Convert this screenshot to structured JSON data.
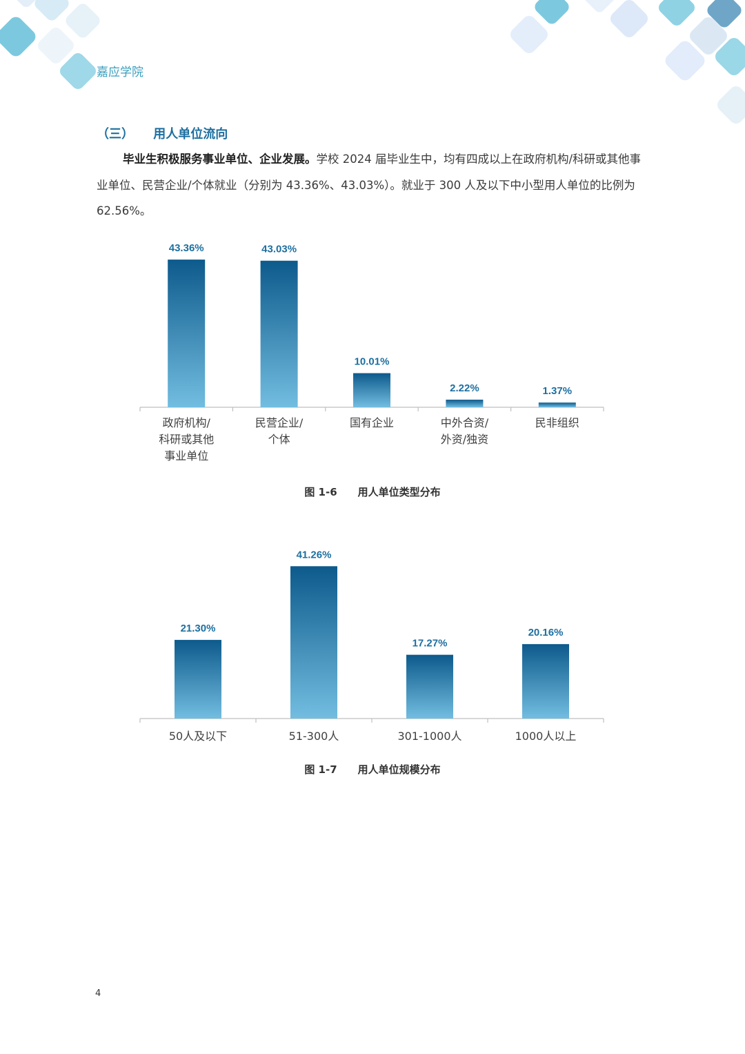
{
  "header": {
    "school": "嘉应学院"
  },
  "section": {
    "number": "（三）",
    "title": "用人单位流向"
  },
  "paragraph": {
    "bold_lead": "毕业生积极服务事业单位、企业发展。",
    "text": "学校 2024 届毕业生中，均有四成以上在政府机构/科研或其他事业单位、民营企业/个体就业（分别为 43.36%、43.03%）。就业于 300 人及以下中小型用人单位的比例为 62.56%。"
  },
  "chart_data": [
    {
      "type": "bar",
      "categories": [
        [
          "政府机构/",
          "科研或其他",
          "事业单位"
        ],
        [
          "民营企业/",
          "个体"
        ],
        [
          "国有企业"
        ],
        [
          "中外合资/",
          "外资/独资"
        ],
        [
          "民非组织"
        ]
      ],
      "values": [
        43.36,
        43.03,
        10.01,
        2.22,
        1.37
      ],
      "value_labels": [
        "43.36%",
        "43.03%",
        "10.01%",
        "2.22%",
        "1.37%"
      ],
      "ylim": [
        0,
        45
      ],
      "grid": false,
      "colors": {
        "top": "#0d5a8c",
        "bottom": "#72bde0",
        "label": "#1d6fa0"
      }
    },
    {
      "type": "bar",
      "categories": [
        [
          "50人及以下"
        ],
        [
          "51-300人"
        ],
        [
          "301-1000人"
        ],
        [
          "1000人以上"
        ]
      ],
      "values": [
        21.3,
        41.26,
        17.27,
        20.16
      ],
      "value_labels": [
        "21.30%",
        "41.26%",
        "17.27%",
        "20.16%"
      ],
      "ylim": [
        0,
        43
      ],
      "grid": false,
      "colors": {
        "top": "#0d5a8c",
        "bottom": "#72bde0",
        "label": "#1d6fa0"
      }
    }
  ],
  "captions": [
    {
      "fig": "图 1-6",
      "title": "用人单位类型分布"
    },
    {
      "fig": "图 1-7",
      "title": "用人单位规模分布"
    }
  ],
  "page_number": "4"
}
